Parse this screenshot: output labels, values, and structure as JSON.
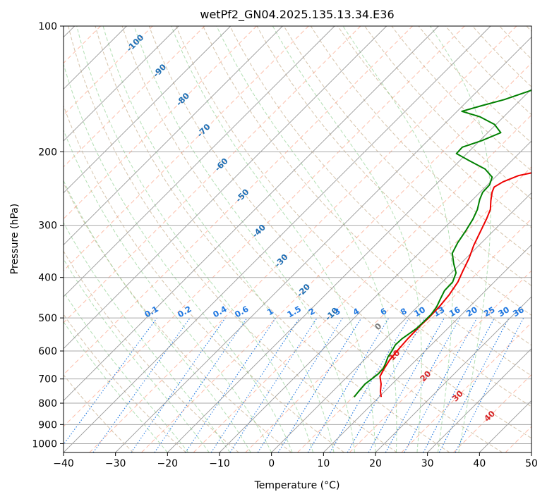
{
  "chart_data": {
    "type": "line",
    "subtype": "skew-t log-p diagram",
    "title": "wetPf2_GN04.2025.135.13.34.E36",
    "xlabel": "Temperature (°C)",
    "ylabel": "Pressure (hPa)",
    "xlim": [
      -40,
      50
    ],
    "ylim": [
      1050,
      100
    ],
    "y_scale": "log",
    "x_ticks": [
      "−40",
      "−30",
      "−20",
      "−10",
      "0",
      "10",
      "20",
      "30",
      "40",
      "50"
    ],
    "x_tick_values": [
      -40,
      -30,
      -20,
      -10,
      0,
      10,
      20,
      30,
      40,
      50
    ],
    "y_ticks": [
      "100",
      "200",
      "300",
      "400",
      "500",
      "600",
      "700",
      "800",
      "900",
      "1000"
    ],
    "y_tick_values": [
      100,
      200,
      300,
      400,
      500,
      600,
      700,
      800,
      900,
      1000
    ],
    "grid": true,
    "skew": 1.0,
    "series": [
      {
        "kind": "temperature",
        "color": "#ee0000",
        "points": [
          [
            773,
            10.4
          ],
          [
            750,
            9.2
          ],
          [
            720,
            7.9
          ],
          [
            690,
            6.2
          ],
          [
            660,
            5.5
          ],
          [
            630,
            4.9
          ],
          [
            600,
            4.6
          ],
          [
            560,
            4.3
          ],
          [
            520,
            4.2
          ],
          [
            500,
            4.3
          ],
          [
            470,
            4.2
          ],
          [
            440,
            3.8
          ],
          [
            410,
            3.0
          ],
          [
            385,
            1.8
          ],
          [
            360,
            0.6
          ],
          [
            335,
            -1.0
          ],
          [
            310,
            -2.4
          ],
          [
            290,
            -3.6
          ],
          [
            275,
            -4.7
          ],
          [
            262,
            -6.3
          ],
          [
            250,
            -7.7
          ],
          [
            243,
            -8.3
          ],
          [
            236,
            -7.6
          ],
          [
            228,
            -5.8
          ],
          [
            220,
            -1.0
          ],
          [
            212,
            3.5
          ],
          [
            205,
            7.3
          ],
          [
            195,
            9.8
          ],
          [
            180,
            13.3
          ],
          [
            165,
            16.5
          ],
          [
            150,
            18.9
          ],
          [
            135,
            21.2
          ],
          [
            122,
            23.4
          ],
          [
            112,
            25.4
          ],
          [
            105,
            27.5
          ],
          [
            100,
            29.0
          ]
        ]
      },
      {
        "kind": "dewpoint",
        "color": "#008000",
        "points": [
          [
            773,
            5.2
          ],
          [
            750,
            5.0
          ],
          [
            720,
            4.8
          ],
          [
            700,
            5.1
          ],
          [
            680,
            5.4
          ],
          [
            660,
            5.3
          ],
          [
            640,
            4.7
          ],
          [
            620,
            4.0
          ],
          [
            600,
            3.6
          ],
          [
            580,
            3.1
          ],
          [
            560,
            3.2
          ],
          [
            545,
            3.6
          ],
          [
            530,
            4.0
          ],
          [
            510,
            4.1
          ],
          [
            490,
            4.1
          ],
          [
            470,
            3.7
          ],
          [
            450,
            2.9
          ],
          [
            430,
            2.1
          ],
          [
            410,
            2.0
          ],
          [
            390,
            0.9
          ],
          [
            370,
            -1.4
          ],
          [
            350,
            -3.6
          ],
          [
            330,
            -4.6
          ],
          [
            310,
            -5.3
          ],
          [
            290,
            -6.2
          ],
          [
            275,
            -7.2
          ],
          [
            260,
            -8.7
          ],
          [
            250,
            -9.5
          ],
          [
            240,
            -9.6
          ],
          [
            230,
            -10.6
          ],
          [
            220,
            -13.5
          ],
          [
            210,
            -18.2
          ],
          [
            202,
            -22.0
          ],
          [
            195,
            -22.1
          ],
          [
            188,
            -19.6
          ],
          [
            180,
            -17.5
          ],
          [
            172,
            -20.3
          ],
          [
            165,
            -24.5
          ],
          [
            160,
            -29.1
          ],
          [
            155,
            -26.3
          ],
          [
            150,
            -23.2
          ],
          [
            140,
            -18.6
          ],
          [
            130,
            -15.5
          ],
          [
            120,
            -14.4
          ],
          [
            112,
            -14.3
          ],
          [
            105,
            -13.8
          ],
          [
            100,
            -12.5
          ]
        ]
      }
    ],
    "mixing_ratio_labels": [
      "0.1",
      "0.2",
      "0.4",
      "0.6",
      "1",
      "1.5",
      "2",
      "3",
      "4",
      "6",
      "8",
      "10",
      "13",
      "16",
      "20",
      "25",
      "30",
      "36"
    ],
    "mixing_ratio_values": [
      0.1,
      0.2,
      0.4,
      0.6,
      1,
      1.5,
      2,
      3,
      4,
      6,
      8,
      10,
      13,
      16,
      20,
      25,
      30,
      36
    ],
    "wet_bulb_zero_label": "0",
    "isotherm_labels_blue": [
      "-100",
      "-90",
      "-80",
      "-70",
      "-60",
      "-50",
      "-40",
      "-30",
      "-20",
      "-10"
    ],
    "isotherm_labels_red": [
      "10",
      "20",
      "30",
      "40"
    ],
    "colors": {
      "temperature": "#ee0000",
      "dewpoint": "#008000",
      "dry_adiabat": "#c8b08f",
      "moist_adiabat": "#74c476",
      "mixing_ratio": "#1f77e0",
      "isotherm": "#999999",
      "isotherm_label_cold": "#1f6fb4",
      "isotherm_label_warm": "#d62728",
      "isotherm_dashed": "#fc9272"
    }
  }
}
